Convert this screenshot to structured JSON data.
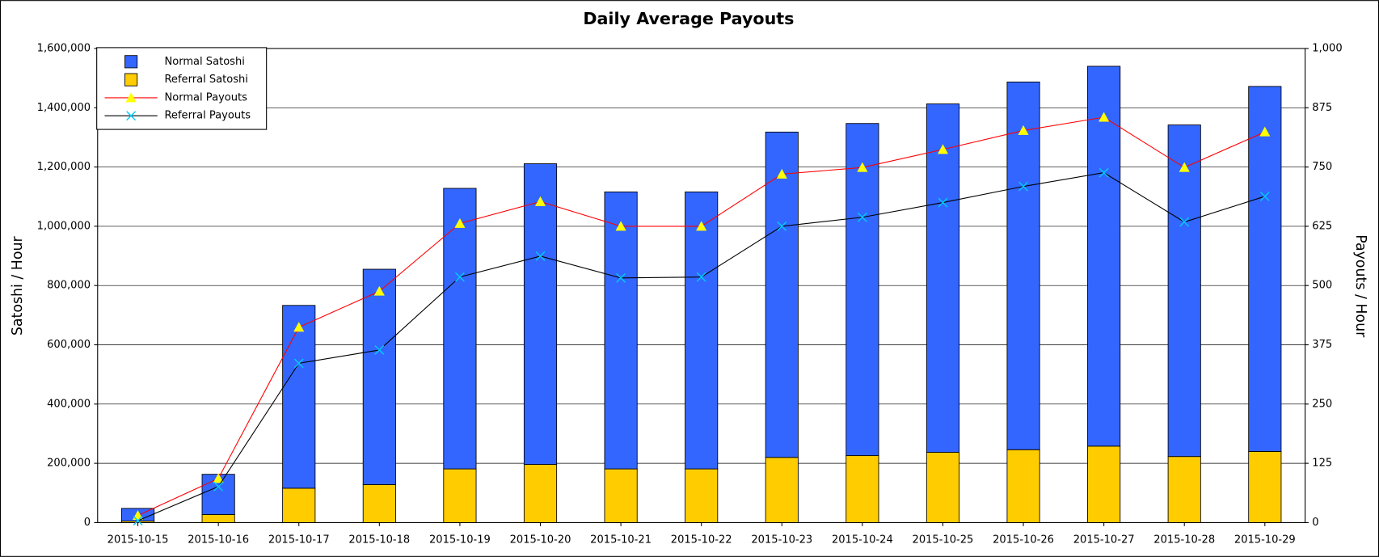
{
  "chart_data": {
    "type": "bar",
    "stacked": true,
    "title": "Daily Average Payouts",
    "y_label": "Satoshi / Hour",
    "y2_label": "Payouts / Hour",
    "categories": [
      "2015-10-15",
      "2015-10-16",
      "2015-10-17",
      "2015-10-18",
      "2015-10-19",
      "2015-10-20",
      "2015-10-21",
      "2015-10-22",
      "2015-10-23",
      "2015-10-24",
      "2015-10-25",
      "2015-10-26",
      "2015-10-27",
      "2015-10-28",
      "2015-10-29"
    ],
    "series": [
      {
        "name": "Normal Satoshi",
        "color": "#3366ff",
        "values": [
          43000,
          136000,
          617000,
          727000,
          947000,
          1015000,
          935000,
          935000,
          1098000,
          1121000,
          1176000,
          1241000,
          1282000,
          1119000,
          1232000
        ]
      },
      {
        "name": "Referral Satoshi",
        "color": "#ffcc00",
        "values": [
          5000,
          27000,
          116000,
          128000,
          181000,
          196000,
          181000,
          181000,
          220000,
          226000,
          237000,
          246000,
          258000,
          223000,
          240000
        ]
      },
      {
        "name": "Normal Payouts",
        "color": "#ff0000",
        "marker": "triangle",
        "marker_color": "#ffff00",
        "axis": "y2",
        "values": [
          15,
          93,
          412,
          488,
          631,
          677,
          625,
          625,
          735,
          749,
          787,
          827,
          855,
          749,
          824
        ]
      },
      {
        "name": "Referral Payouts",
        "color": "#000000",
        "marker": "x",
        "marker_color": "#00ccff",
        "axis": "y2",
        "values": [
          4,
          76,
          336,
          364,
          518,
          562,
          516,
          518,
          625,
          644,
          675,
          709,
          738,
          634,
          688
        ]
      }
    ],
    "stack_order": [
      "Referral Satoshi",
      "Normal Satoshi"
    ],
    "ylim": [
      0,
      1600000
    ],
    "yticks": [
      0,
      {
        "value": 200000,
        "label": "200,000"
      },
      {
        "value": 400000,
        "label": "400,000"
      },
      {
        "value": 600000,
        "label": "600,000"
      },
      {
        "value": 800000,
        "label": "800,000"
      },
      {
        "value": 1000000,
        "label": "1,000,000"
      },
      {
        "value": 1200000,
        "label": "1,200,000"
      },
      {
        "value": 1400000,
        "label": "1,400,000"
      },
      {
        "value": 1600000,
        "label": "1,600,000"
      }
    ],
    "y2lim": [
      0,
      1000
    ],
    "y2ticks": [
      0,
      125,
      250,
      375,
      500,
      625,
      750,
      875,
      {
        "value": 1000,
        "label": "1,000"
      }
    ],
    "grid": true,
    "legend": "top-left"
  }
}
